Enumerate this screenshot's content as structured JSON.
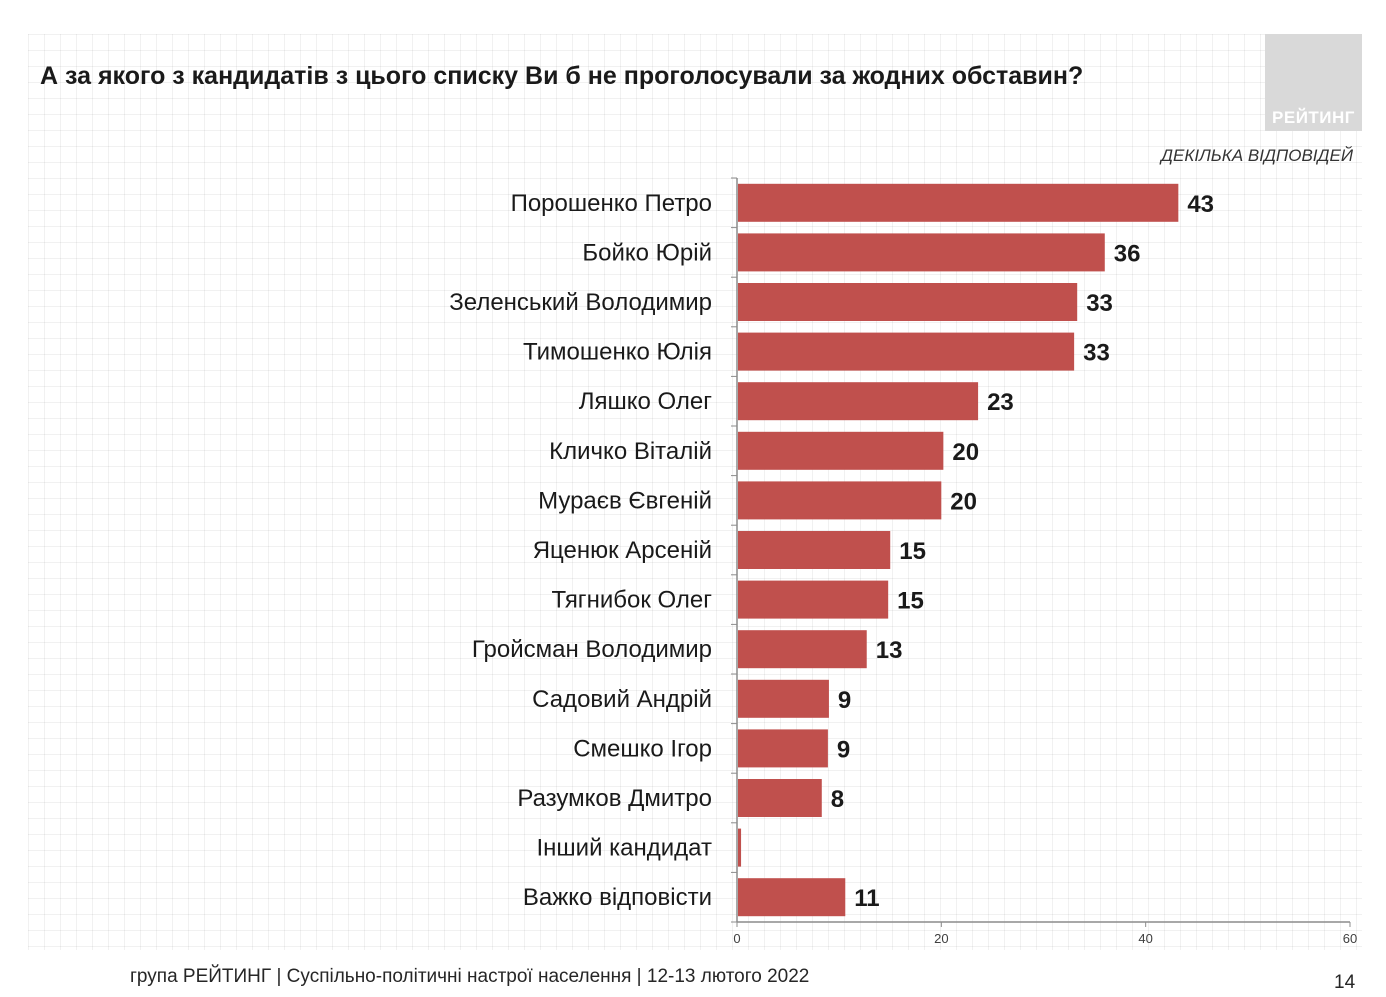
{
  "title": "А за якого з кандидатів з цього списку Ви б не проголосували за жодних обставин?",
  "logo_text": "РЕЙТИНГ",
  "note": "ДЕКІЛЬКА ВІДПОВІДЕЙ",
  "footer": "група РЕЙТИНГ | Суспільно-політичні настрої населення | 12-13 лютого 2022",
  "page_number": "14",
  "colors": {
    "bar": "#c0504d",
    "axis": "#8c8c8c"
  },
  "chart_data": {
    "type": "bar",
    "orientation": "horizontal",
    "title": "",
    "xlabel": "",
    "ylabel": "",
    "xlim": [
      0,
      60
    ],
    "xticks": [
      0,
      20,
      40,
      60
    ],
    "categories": [
      "Порошенко Петро",
      "Бойко Юрій",
      "Зеленський Володимир",
      "Тимошенко Юлія",
      "Ляшко Олег",
      "Кличко Віталій",
      "Мураєв Євгеній",
      "Яценюк Арсеній",
      "Тягнибок Олег",
      "Гройсман Володимир",
      "Садовий Андрій",
      "Смешко Ігор",
      "Разумков Дмитро",
      "Інший кандидат",
      "Важко відповісти"
    ],
    "values": [
      43.1,
      35.9,
      33.2,
      32.9,
      23.5,
      20.1,
      19.9,
      14.9,
      14.7,
      12.6,
      8.9,
      8.8,
      8.2,
      0.3,
      10.5
    ],
    "labels": [
      "43",
      "36",
      "33",
      "33",
      "23",
      "20",
      "20",
      "15",
      "15",
      "13",
      "9",
      "9",
      "8",
      "",
      "11"
    ],
    "grid": false,
    "legend": "none"
  }
}
